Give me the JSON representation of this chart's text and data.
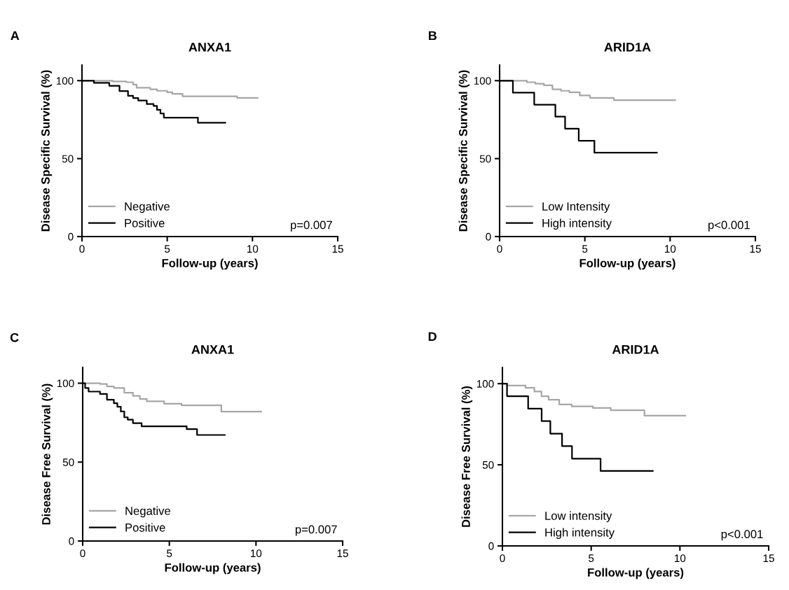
{
  "chart_data": [
    {
      "type": "step",
      "title": "ANXA1",
      "xlabel": "Follow-up (years)",
      "ylabel": "Disease Specific Survival (%)",
      "annotations": [
        "A",
        "p=0.007"
      ],
      "xlim": [
        0,
        15
      ],
      "xticks": [
        0,
        5,
        10,
        15
      ],
      "ylim": [
        0,
        110
      ],
      "yticks": [
        0,
        50,
        100
      ],
      "grid": false,
      "legend": "bottom left",
      "marker": "none",
      "line_style": "solid",
      "series": [
        {
          "name": "Negative",
          "color": "#a6a6a6",
          "x": [
            0,
            1.8,
            2.6,
            3.0,
            3.2,
            4.0,
            4.4,
            5.0,
            5.3,
            5.9,
            9.1,
            10.3
          ],
          "values": [
            100,
            99.5,
            99,
            97.5,
            95.5,
            94.5,
            93.5,
            92.5,
            91.5,
            90,
            89,
            89
          ]
        },
        {
          "name": "Positive",
          "color": "#000000",
          "x": [
            0,
            0.7,
            1.6,
            2.2,
            2.7,
            3.0,
            3.3,
            3.8,
            4.2,
            4.4,
            4.6,
            4.8,
            6.8,
            8.4
          ],
          "values": [
            100,
            98.6,
            96.7,
            93.3,
            90.3,
            88.8,
            87.3,
            85.0,
            83.8,
            81.3,
            79.0,
            76.3,
            73.0,
            73.0
          ]
        }
      ]
    },
    {
      "type": "step",
      "title": "ARID1A",
      "xlabel": "Follow-up (years)",
      "ylabel": "Disease Specific Survival (%)",
      "annotations": [
        "B",
        "p<0.001"
      ],
      "xlim": [
        0,
        15
      ],
      "xticks": [
        0,
        5,
        10,
        15
      ],
      "ylim": [
        0,
        110
      ],
      "yticks": [
        0,
        50,
        100
      ],
      "grid": false,
      "legend": "bottom left",
      "marker": "none",
      "line_style": "solid",
      "series": [
        {
          "name": "Low Intensity",
          "color": "#a6a6a6",
          "x": [
            0,
            1.6,
            2.1,
            2.6,
            3.1,
            3.6,
            4.1,
            4.7,
            5.3,
            6.7,
            10.3
          ],
          "values": [
            100,
            99,
            98,
            97,
            94.5,
            93.5,
            92.5,
            90.5,
            89,
            87.5,
            87.5
          ]
        },
        {
          "name": "High intensity",
          "color": "#000000",
          "x": [
            0,
            0.78,
            2.03,
            3.27,
            3.84,
            4.64,
            5.56,
            9.22
          ],
          "values": [
            100,
            92.3,
            84.6,
            76.9,
            69.2,
            61.5,
            53.8,
            53.8
          ]
        }
      ]
    },
    {
      "type": "step",
      "title": "ANXA1",
      "xlabel": "Follow-up (years)",
      "ylabel": "Disease Free Survival (%)",
      "annotations": [
        "C",
        "p=0.007"
      ],
      "xlim": [
        0,
        15
      ],
      "xticks": [
        0,
        5,
        10,
        15
      ],
      "ylim": [
        0,
        110
      ],
      "yticks": [
        0,
        50,
        100
      ],
      "grid": false,
      "legend": "bottom left",
      "marker": "none",
      "line_style": "solid",
      "series": [
        {
          "name": "Negative",
          "color": "#a6a6a6",
          "x": [
            0,
            1.0,
            1.4,
            1.8,
            2.4,
            2.9,
            3.3,
            3.7,
            4.7,
            5.7,
            8.0,
            10.3
          ],
          "values": [
            100,
            99.5,
            98,
            97,
            94,
            92,
            90,
            88.5,
            87,
            86,
            82,
            82
          ]
        },
        {
          "name": "Positive",
          "color": "#000000",
          "x": [
            0,
            0.14,
            0.34,
            1.0,
            1.4,
            1.8,
            2.0,
            2.2,
            2.4,
            2.6,
            2.9,
            3.4,
            6.0,
            6.6,
            8.2
          ],
          "values": [
            100,
            97,
            94.7,
            93.2,
            89.5,
            87.3,
            85.1,
            82.1,
            78.4,
            76.9,
            74.7,
            72.7,
            70.9,
            67.2,
            67.2
          ]
        }
      ]
    },
    {
      "type": "step",
      "title": "ARID1A",
      "xlabel": "Follow-up (years)",
      "ylabel": "Disease Free Survival (%)",
      "annotations": [
        "D",
        "p<0.001"
      ],
      "xlim": [
        0,
        15
      ],
      "xticks": [
        0,
        5,
        10,
        15
      ],
      "ylim": [
        0,
        110
      ],
      "yticks": [
        0,
        50,
        100
      ],
      "grid": false,
      "legend": "bottom left",
      "marker": "none",
      "line_style": "solid",
      "series": [
        {
          "name": "Low intensity",
          "color": "#a6a6a6",
          "x": [
            0,
            0.26,
            1.3,
            1.8,
            2.2,
            2.6,
            3.2,
            3.9,
            5.1,
            6.1,
            8.0,
            10.3
          ],
          "values": [
            100,
            98.8,
            97.4,
            95.2,
            92.3,
            90.1,
            87.2,
            86,
            85,
            83.6,
            80.3,
            80.3
          ]
        },
        {
          "name": "High intensity",
          "color": "#000000",
          "x": [
            0,
            0.26,
            1.45,
            2.21,
            2.7,
            3.36,
            3.92,
            5.53,
            8.47
          ],
          "values": [
            100,
            92.3,
            84.6,
            76.9,
            69.2,
            61.5,
            53.8,
            46.2,
            46.2
          ]
        }
      ]
    }
  ]
}
